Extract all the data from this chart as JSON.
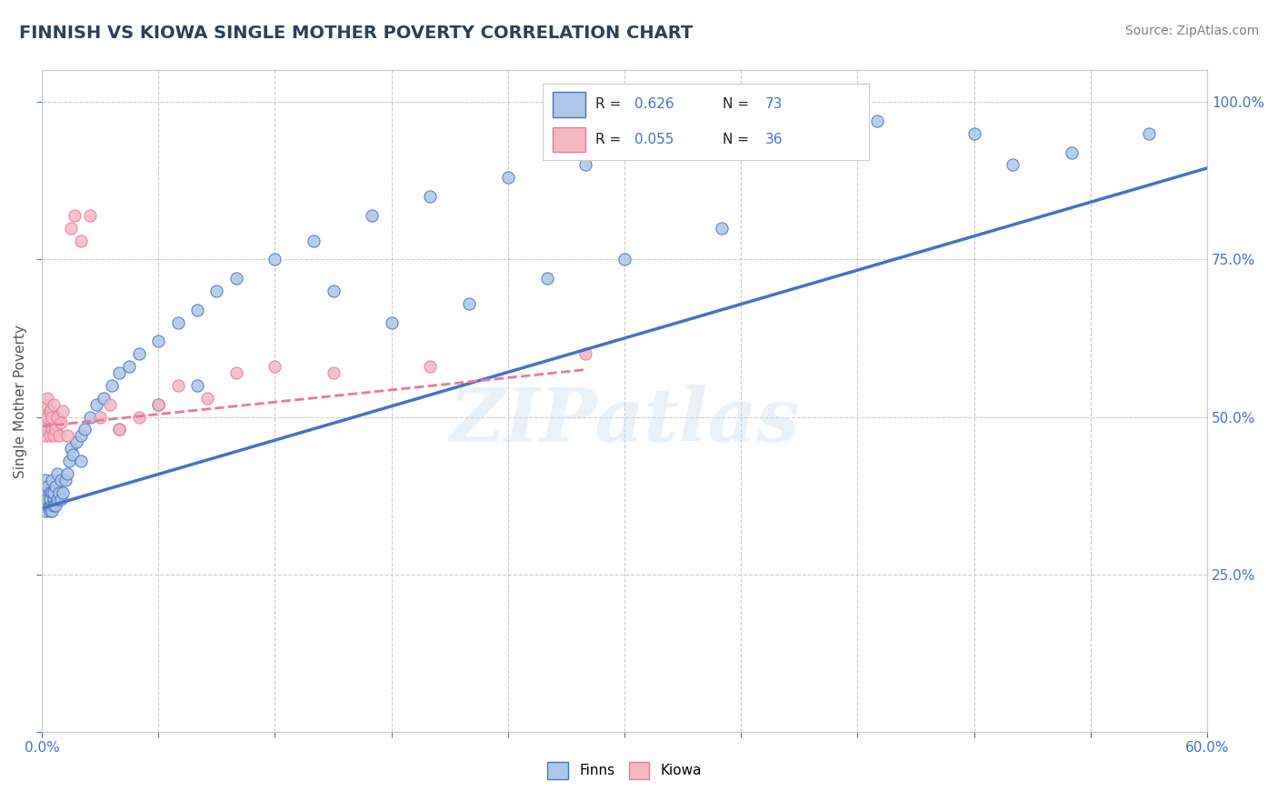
{
  "title": "FINNISH VS KIOWA SINGLE MOTHER POVERTY CORRELATION CHART",
  "source": "Source: ZipAtlas.com",
  "ylabel": "Single Mother Poverty",
  "xlim": [
    0.0,
    0.6
  ],
  "ylim": [
    0.0,
    1.05
  ],
  "xticks": [
    0.0,
    0.06,
    0.12,
    0.18,
    0.24,
    0.3,
    0.36,
    0.42,
    0.48,
    0.54,
    0.6
  ],
  "yticks": [
    0.0,
    0.25,
    0.5,
    0.75,
    1.0
  ],
  "finns_color": "#aec6e8",
  "kiowa_color": "#f4b8c1",
  "finns_line_color": "#4472c4",
  "kiowa_line_color": "#e8789a",
  "title_color": "#2e4057",
  "axis_color": "#4472c4",
  "watermark": "ZIPatlas",
  "finns_scatter_x": [
    0.001,
    0.001,
    0.001,
    0.002,
    0.002,
    0.002,
    0.002,
    0.003,
    0.003,
    0.003,
    0.003,
    0.004,
    0.004,
    0.004,
    0.004,
    0.005,
    0.005,
    0.005,
    0.005,
    0.006,
    0.006,
    0.006,
    0.007,
    0.007,
    0.008,
    0.008,
    0.009,
    0.01,
    0.01,
    0.011,
    0.012,
    0.013,
    0.014,
    0.015,
    0.016,
    0.018,
    0.02,
    0.022,
    0.025,
    0.028,
    0.032,
    0.036,
    0.04,
    0.045,
    0.05,
    0.06,
    0.07,
    0.08,
    0.09,
    0.1,
    0.12,
    0.14,
    0.17,
    0.2,
    0.24,
    0.28,
    0.33,
    0.38,
    0.43,
    0.48,
    0.5,
    0.53,
    0.57,
    0.3,
    0.35,
    0.22,
    0.18,
    0.15,
    0.26,
    0.08,
    0.06,
    0.04,
    0.02
  ],
  "finns_scatter_y": [
    0.37,
    0.38,
    0.36,
    0.37,
    0.38,
    0.35,
    0.4,
    0.36,
    0.38,
    0.37,
    0.39,
    0.36,
    0.38,
    0.35,
    0.37,
    0.36,
    0.38,
    0.35,
    0.4,
    0.37,
    0.36,
    0.38,
    0.36,
    0.39,
    0.37,
    0.41,
    0.38,
    0.37,
    0.4,
    0.38,
    0.4,
    0.41,
    0.43,
    0.45,
    0.44,
    0.46,
    0.47,
    0.48,
    0.5,
    0.52,
    0.53,
    0.55,
    0.57,
    0.58,
    0.6,
    0.62,
    0.65,
    0.67,
    0.7,
    0.72,
    0.75,
    0.78,
    0.82,
    0.85,
    0.88,
    0.9,
    0.93,
    0.95,
    0.97,
    0.95,
    0.9,
    0.92,
    0.95,
    0.75,
    0.8,
    0.68,
    0.65,
    0.7,
    0.72,
    0.55,
    0.52,
    0.48,
    0.43
  ],
  "kiowa_scatter_x": [
    0.001,
    0.001,
    0.002,
    0.002,
    0.002,
    0.003,
    0.003,
    0.003,
    0.004,
    0.004,
    0.005,
    0.005,
    0.006,
    0.006,
    0.007,
    0.008,
    0.009,
    0.01,
    0.011,
    0.013,
    0.015,
    0.017,
    0.02,
    0.025,
    0.03,
    0.035,
    0.04,
    0.05,
    0.06,
    0.07,
    0.085,
    0.1,
    0.12,
    0.15,
    0.2,
    0.28
  ],
  "kiowa_scatter_y": [
    0.48,
    0.5,
    0.47,
    0.49,
    0.52,
    0.48,
    0.5,
    0.53,
    0.47,
    0.51,
    0.48,
    0.5,
    0.47,
    0.52,
    0.48,
    0.5,
    0.47,
    0.49,
    0.51,
    0.47,
    0.8,
    0.82,
    0.78,
    0.82,
    0.5,
    0.52,
    0.48,
    0.5,
    0.52,
    0.55,
    0.53,
    0.57,
    0.58,
    0.57,
    0.58,
    0.6
  ],
  "finns_trendline": [
    0.0,
    0.6,
    0.355,
    0.895
  ],
  "kiowa_trendline": [
    0.0,
    0.28,
    0.485,
    0.575
  ]
}
